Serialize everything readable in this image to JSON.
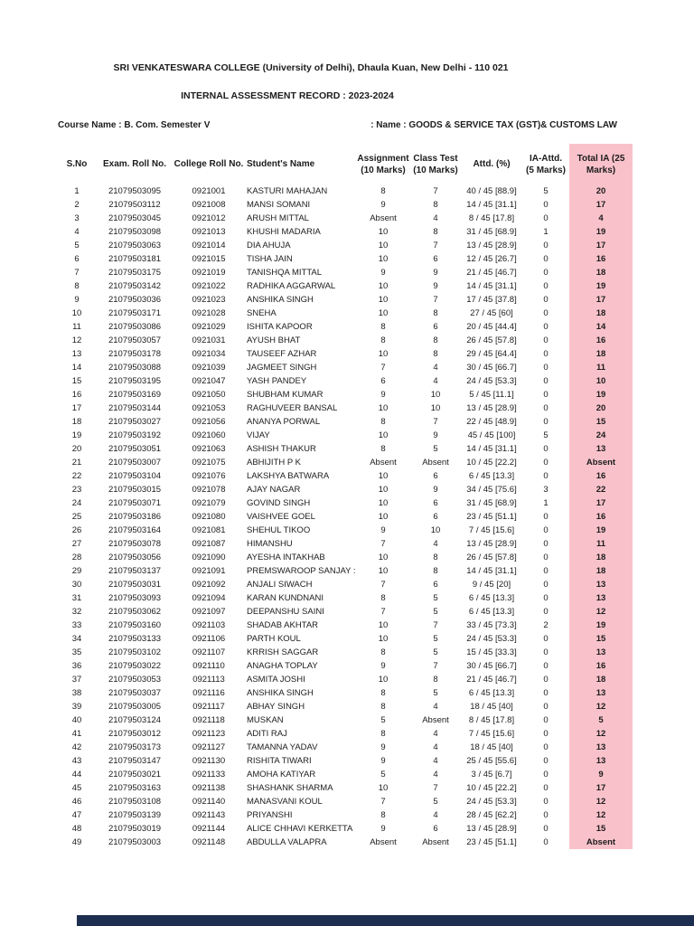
{
  "page": {
    "title": "SRI VENKATESWARA COLLEGE (University of Delhi), Dhaula Kuan, New Delhi - 110 021",
    "subtitle": "INTERNAL ASSESSMENT RECORD : 2023-2024",
    "course_label": "Course Name : B. Com. Semester V",
    "paper_label": ": Name : GOODS & SERVICE TAX (GST)& CUSTOMS LAW"
  },
  "colors": {
    "highlight_column": "#f9c2cb",
    "footer_bar": "#1d2e50"
  },
  "table": {
    "columns": [
      "S.No",
      "Exam. Roll No.",
      "College Roll No.",
      "Student's Name",
      "Assignment\n(10 Marks)",
      "Class Test\n(10 Marks)",
      "Attd. (%)",
      "IA-Attd.\n(5 Marks)",
      "Total IA (25\nMarks)"
    ],
    "highlight_column_index": 8,
    "rows": [
      [
        "1",
        "21079503095",
        "0921001",
        "KASTURI MAHAJAN",
        "8",
        "7",
        "40 / 45 [88.9]",
        "5",
        "20"
      ],
      [
        "2",
        "21079503112",
        "0921008",
        "MANSI SOMANI",
        "9",
        "8",
        "14 / 45 [31.1]",
        "0",
        "17"
      ],
      [
        "3",
        "21079503045",
        "0921012",
        "ARUSH MITTAL",
        "Absent",
        "4",
        "8 / 45 [17.8]",
        "0",
        "4"
      ],
      [
        "4",
        "21079503098",
        "0921013",
        "KHUSHI MADARIA",
        "10",
        "8",
        "31 / 45 [68.9]",
        "1",
        "19"
      ],
      [
        "5",
        "21079503063",
        "0921014",
        "DIA AHUJA",
        "10",
        "7",
        "13 / 45 [28.9]",
        "0",
        "17"
      ],
      [
        "6",
        "21079503181",
        "0921015",
        "TISHA JAIN",
        "10",
        "6",
        "12 / 45 [26.7]",
        "0",
        "16"
      ],
      [
        "7",
        "21079503175",
        "0921019",
        "TANISHQA MITTAL",
        "9",
        "9",
        "21 / 45 [46.7]",
        "0",
        "18"
      ],
      [
        "8",
        "21079503142",
        "0921022",
        "RADHIKA AGGARWAL",
        "10",
        "9",
        "14 / 45 [31.1]",
        "0",
        "19"
      ],
      [
        "9",
        "21079503036",
        "0921023",
        "ANSHIKA SINGH",
        "10",
        "7",
        "17 / 45 [37.8]",
        "0",
        "17"
      ],
      [
        "10",
        "21079503171",
        "0921028",
        "SNEHA",
        "10",
        "8",
        "27 / 45 [60]",
        "0",
        "18"
      ],
      [
        "11",
        "21079503086",
        "0921029",
        "ISHITA KAPOOR",
        "8",
        "6",
        "20 / 45 [44.4]",
        "0",
        "14"
      ],
      [
        "12",
        "21079503057",
        "0921031",
        "AYUSH BHAT",
        "8",
        "8",
        "26 / 45 [57.8]",
        "0",
        "16"
      ],
      [
        "13",
        "21079503178",
        "0921034",
        "TAUSEEF AZHAR",
        "10",
        "8",
        "29 / 45 [64.4]",
        "0",
        "18"
      ],
      [
        "14",
        "21079503088",
        "0921039",
        "JAGMEET SINGH",
        "7",
        "4",
        "30 / 45 [66.7]",
        "0",
        "11"
      ],
      [
        "15",
        "21079503195",
        "0921047",
        "YASH PANDEY",
        "6",
        "4",
        "24 / 45 [53.3]",
        "0",
        "10"
      ],
      [
        "16",
        "21079503169",
        "0921050",
        "SHUBHAM KUMAR",
        "9",
        "10",
        "5 / 45 [11.1]",
        "0",
        "19"
      ],
      [
        "17",
        "21079503144",
        "0921053",
        "RAGHUVEER BANSAL",
        "10",
        "10",
        "13 / 45 [28.9]",
        "0",
        "20"
      ],
      [
        "18",
        "21079503027",
        "0921056",
        "ANANYA PORWAL",
        "8",
        "7",
        "22 / 45 [48.9]",
        "0",
        "15"
      ],
      [
        "19",
        "21079503192",
        "0921060",
        "VIJAY",
        "10",
        "9",
        "45 / 45 [100]",
        "5",
        "24"
      ],
      [
        "20",
        "21079503051",
        "0921063",
        "ASHISH THAKUR",
        "8",
        "5",
        "14 / 45 [31.1]",
        "0",
        "13"
      ],
      [
        "21",
        "21079503007",
        "0921075",
        "ABHIJITH P K",
        "Absent",
        "Absent",
        "10 / 45 [22.2]",
        "0",
        "Absent"
      ],
      [
        "22",
        "21079503104",
        "0921076",
        "LAKSHYA BATWARA",
        "10",
        "6",
        "6 / 45 [13.3]",
        "0",
        "16"
      ],
      [
        "23",
        "21079503015",
        "0921078",
        "AJAY NAGAR",
        "10",
        "9",
        "34 / 45 [75.6]",
        "3",
        "22"
      ],
      [
        "24",
        "21079503071",
        "0921079",
        "GOVIND SINGH",
        "10",
        "6",
        "31 / 45 [68.9]",
        "1",
        "17"
      ],
      [
        "25",
        "21079503186",
        "0921080",
        "VAISHVEE GOEL",
        "10",
        "6",
        "23 / 45 [51.1]",
        "0",
        "16"
      ],
      [
        "26",
        "21079503164",
        "0921081",
        "SHEHUL TIKOO",
        "9",
        "10",
        "7 / 45 [15.6]",
        "0",
        "19"
      ],
      [
        "27",
        "21079503078",
        "0921087",
        "HIMANSHU",
        "7",
        "4",
        "13 / 45 [28.9]",
        "0",
        "11"
      ],
      [
        "28",
        "21079503056",
        "0921090",
        "AYESHA INTAKHAB",
        "10",
        "8",
        "26 / 45 [57.8]",
        "0",
        "18"
      ],
      [
        "29",
        "21079503137",
        "0921091",
        "PREMSWAROOP SANJAY :",
        "10",
        "8",
        "14 / 45 [31.1]",
        "0",
        "18"
      ],
      [
        "30",
        "21079503031",
        "0921092",
        "ANJALI SIWACH",
        "7",
        "6",
        "9 / 45 [20]",
        "0",
        "13"
      ],
      [
        "31",
        "21079503093",
        "0921094",
        "KARAN KUNDNANI",
        "8",
        "5",
        "6 / 45 [13.3]",
        "0",
        "13"
      ],
      [
        "32",
        "21079503062",
        "0921097",
        "DEEPANSHU SAINI",
        "7",
        "5",
        "6 / 45 [13.3]",
        "0",
        "12"
      ],
      [
        "33",
        "21079503160",
        "0921103",
        "SHADAB AKHTAR",
        "10",
        "7",
        "33 / 45 [73.3]",
        "2",
        "19"
      ],
      [
        "34",
        "21079503133",
        "0921106",
        "PARTH KOUL",
        "10",
        "5",
        "24 / 45 [53.3]",
        "0",
        "15"
      ],
      [
        "35",
        "21079503102",
        "0921107",
        "KRRISH SAGGAR",
        "8",
        "5",
        "15 / 45 [33.3]",
        "0",
        "13"
      ],
      [
        "36",
        "21079503022",
        "0921110",
        "ANAGHA TOPLAY",
        "9",
        "7",
        "30 / 45 [66.7]",
        "0",
        "16"
      ],
      [
        "37",
        "21079503053",
        "0921113",
        "ASMITA JOSHI",
        "10",
        "8",
        "21 / 45 [46.7]",
        "0",
        "18"
      ],
      [
        "38",
        "21079503037",
        "0921116",
        "ANSHIKA SINGH",
        "8",
        "5",
        "6 / 45 [13.3]",
        "0",
        "13"
      ],
      [
        "39",
        "21079503005",
        "0921117",
        "ABHAY SINGH",
        "8",
        "4",
        "18 / 45 [40]",
        "0",
        "12"
      ],
      [
        "40",
        "21079503124",
        "0921118",
        "MUSKAN",
        "5",
        "Absent",
        "8 / 45 [17.8]",
        "0",
        "5"
      ],
      [
        "41",
        "21079503012",
        "0921123",
        "ADITI RAJ",
        "8",
        "4",
        "7 / 45 [15.6]",
        "0",
        "12"
      ],
      [
        "42",
        "21079503173",
        "0921127",
        "TAMANNA YADAV",
        "9",
        "4",
        "18 / 45 [40]",
        "0",
        "13"
      ],
      [
        "43",
        "21079503147",
        "0921130",
        "RISHITA TIWARI",
        "9",
        "4",
        "25 / 45 [55.6]",
        "0",
        "13"
      ],
      [
        "44",
        "21079503021",
        "0921133",
        "AMOHA KATIYAR",
        "5",
        "4",
        "3 / 45 [6.7]",
        "0",
        "9"
      ],
      [
        "45",
        "21079503163",
        "0921138",
        "SHASHANK SHARMA",
        "10",
        "7",
        "10 / 45 [22.2]",
        "0",
        "17"
      ],
      [
        "46",
        "21079503108",
        "0921140",
        "MANASVANI KOUL",
        "7",
        "5",
        "24 / 45 [53.3]",
        "0",
        "12"
      ],
      [
        "47",
        "21079503139",
        "0921143",
        "PRIYANSHI",
        "8",
        "4",
        "28 / 45 [62.2]",
        "0",
        "12"
      ],
      [
        "48",
        "21079503019",
        "0921144",
        "ALICE CHHAVI KERKETTA",
        "9",
        "6",
        "13 / 45 [28.9]",
        "0",
        "15"
      ],
      [
        "49",
        "21079503003",
        "0921148",
        "ABDULLA VALAPRA",
        "Absent",
        "Absent",
        "23 / 45 [51.1]",
        "0",
        "Absent"
      ]
    ]
  }
}
